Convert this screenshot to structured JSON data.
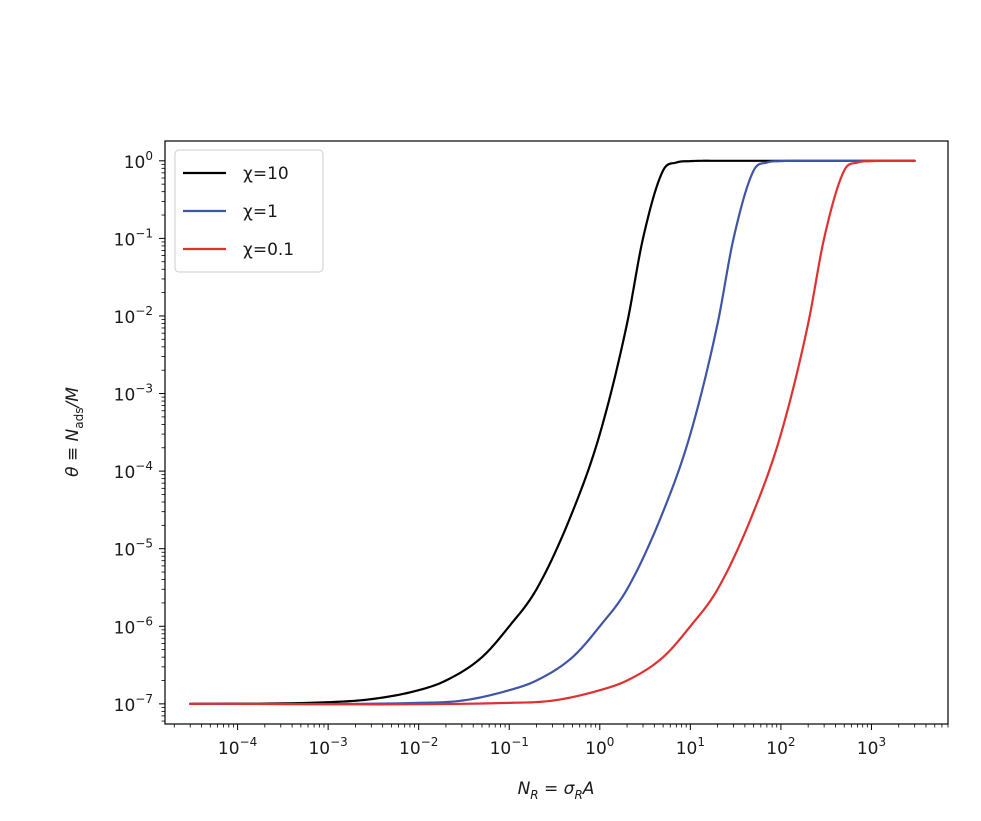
{
  "chart_data": {
    "type": "line",
    "xscale": "log",
    "yscale": "log",
    "xlabel": {
      "main": "N",
      "sub": "R",
      "rest": " = σ",
      "sub2": "R",
      "tail": "A"
    },
    "ylabel": {
      "main": "θ ≡ N",
      "sub": "ads",
      "tail": "/M"
    },
    "xlim": [
      1.58e-05,
      7000
    ],
    "ylim": [
      5.5e-08,
      1.8
    ],
    "x_ticks": [
      {
        "value": 0.0001,
        "base": "10",
        "exp": "−4"
      },
      {
        "value": 0.001,
        "base": "10",
        "exp": "−3"
      },
      {
        "value": 0.01,
        "base": "10",
        "exp": "−2"
      },
      {
        "value": 0.1,
        "base": "10",
        "exp": "−1"
      },
      {
        "value": 1,
        "base": "10",
        "exp": "0"
      },
      {
        "value": 10,
        "base": "10",
        "exp": "1"
      },
      {
        "value": 100,
        "base": "10",
        "exp": "2"
      },
      {
        "value": 1000,
        "base": "10",
        "exp": "3"
      }
    ],
    "y_ticks": [
      {
        "value": 1,
        "base": "10",
        "exp": "0"
      },
      {
        "value": 0.1,
        "base": "10",
        "exp": "−1"
      },
      {
        "value": 0.01,
        "base": "10",
        "exp": "−2"
      },
      {
        "value": 0.001,
        "base": "10",
        "exp": "−3"
      },
      {
        "value": 0.0001,
        "base": "10",
        "exp": "−4"
      },
      {
        "value": 1e-05,
        "base": "10",
        "exp": "−5"
      },
      {
        "value": 1e-06,
        "base": "10",
        "exp": "−6"
      },
      {
        "value": 1e-07,
        "base": "10",
        "exp": "−7"
      }
    ],
    "legend_position": "upper-left",
    "grid": false,
    "series": [
      {
        "name": "χ=10",
        "color": "#000000",
        "x": [
          3e-05,
          0.001,
          0.003,
          0.01,
          0.02,
          0.05,
          0.1,
          0.2,
          0.5,
          1,
          2,
          3,
          5,
          7,
          10,
          20,
          100,
          3000
        ],
        "y": [
          1e-07,
          1.05e-07,
          1.15e-07,
          1.5e-07,
          2e-07,
          4e-07,
          1e-06,
          3e-06,
          3e-05,
          0.0003,
          0.008,
          0.1,
          0.75,
          0.95,
          0.99,
          1,
          1,
          1
        ]
      },
      {
        "name": "χ=1",
        "color": "#3f55a5",
        "x": [
          3e-05,
          0.01,
          0.03,
          0.1,
          0.2,
          0.5,
          1,
          2,
          5,
          10,
          20,
          30,
          50,
          70,
          100,
          200,
          1000,
          3000
        ],
        "y": [
          1e-07,
          1.03e-07,
          1.1e-07,
          1.5e-07,
          2e-07,
          4e-07,
          1e-06,
          3e-06,
          3e-05,
          0.0003,
          0.008,
          0.1,
          0.75,
          0.95,
          0.99,
          1,
          1,
          1
        ]
      },
      {
        "name": "χ=0.1",
        "color": "#e03030",
        "x": [
          3e-05,
          0.1,
          0.3,
          1,
          2,
          5,
          10,
          20,
          50,
          100,
          200,
          300,
          500,
          700,
          1000,
          2000,
          3000
        ],
        "y": [
          1e-07,
          1.03e-07,
          1.1e-07,
          1.5e-07,
          2e-07,
          4e-07,
          1e-06,
          3e-06,
          3e-05,
          0.0003,
          0.008,
          0.1,
          0.75,
          0.95,
          0.99,
          1,
          1
        ]
      }
    ]
  }
}
